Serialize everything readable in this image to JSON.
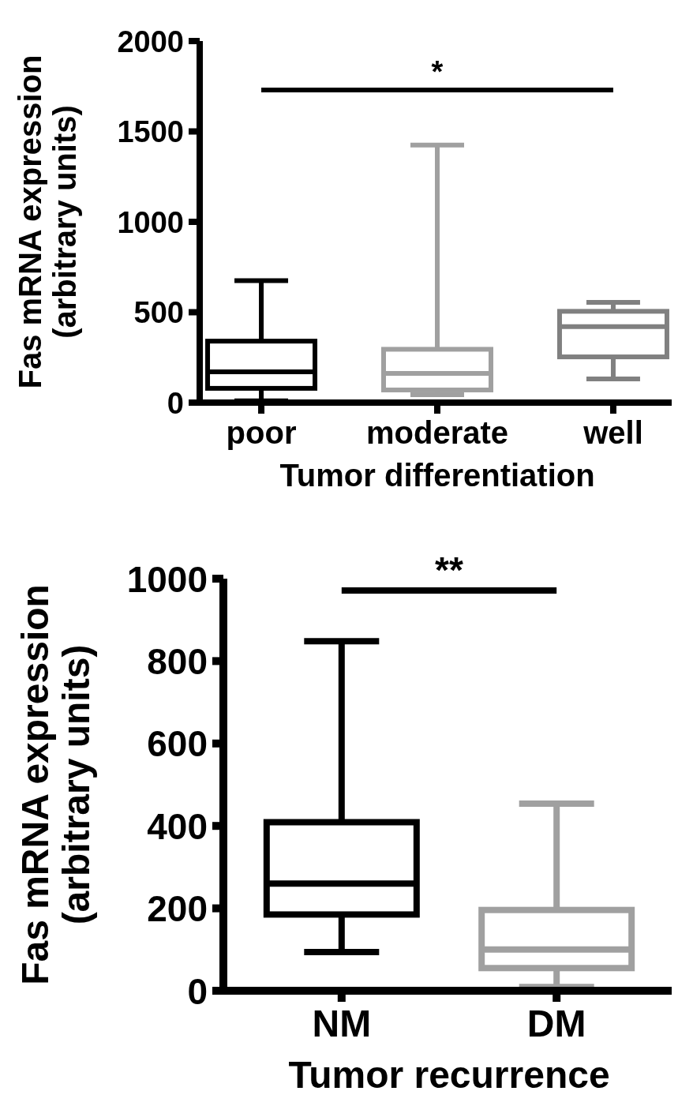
{
  "chart_data": [
    {
      "type": "box",
      "categories": [
        "poor",
        "moderate",
        "well"
      ],
      "xlabel": "Tumor differentiation",
      "ylabel": "Fas mRNA expression\n(arbitrary units)",
      "ylim": [
        0,
        2000
      ],
      "yticks": [
        0,
        500,
        1000,
        1500,
        2000
      ],
      "colors": [
        "#000000",
        "#a0a0a0",
        "#808080"
      ],
      "boxes": [
        {
          "low": 10,
          "q1": 79,
          "median": 170,
          "q3": 340,
          "high": 675
        },
        {
          "low": 44,
          "q1": 70,
          "median": 162,
          "q3": 295,
          "high": 1425
        },
        {
          "low": 131,
          "q1": 253,
          "median": 420,
          "q3": 505,
          "high": 555
        }
      ],
      "annotations": [
        "*"
      ]
    },
    {
      "type": "box",
      "categories": [
        "NM",
        "DM"
      ],
      "xlabel": "Tumor recurrence",
      "ylabel": "Fas mRNA expression\n(arbitrary units)",
      "ylim": [
        0,
        1000
      ],
      "yticks": [
        0,
        200,
        400,
        600,
        800,
        1000
      ],
      "colors": [
        "#000000",
        "#a0a0a0"
      ],
      "boxes": [
        {
          "low": 94,
          "q1": 185,
          "median": 260,
          "q3": 409,
          "high": 848
        },
        {
          "low": 9,
          "q1": 55,
          "median": 100,
          "q3": 196,
          "high": 454
        }
      ],
      "annotations": [
        "**"
      ]
    }
  ]
}
